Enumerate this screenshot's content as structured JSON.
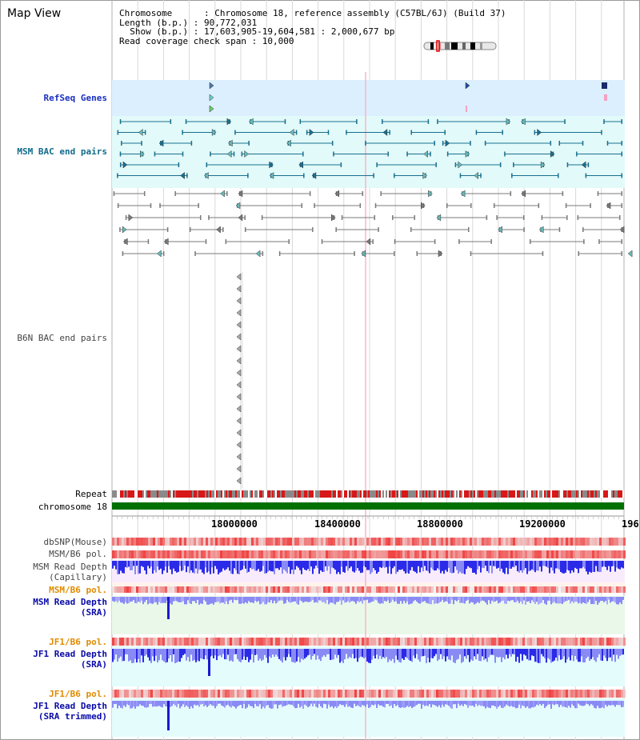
{
  "title": "Map View",
  "header": {
    "line1": "Chromosome      : Chromosome 18, reference assembly (C57BL/6J) (Build 37)",
    "line2": "Length (b.p.) : 90,772,031",
    "line3": "  Show (b.p.) : 17,603,905-19,604,581 : 2,000,677 bp",
    "line4": "Read coverage check span : 10,000"
  },
  "tracks": {
    "refseq": "RefSeq Genes",
    "msm_bac": "MSM BAC end pairs",
    "b6n_bac": "B6N BAC end pairs",
    "repeat": "Repeat",
    "chromosome": "chromosome 18",
    "dbsnp": "dbSNP(Mouse)",
    "msm_b6_pol": "MSM/B6 pol.",
    "msm_depth_cap": "MSM Read Depth\n(Capillary)",
    "msm_b6_pol2": "MSM/B6 pol.",
    "msm_depth_sra": "MSM Read Depth\n(SRA)",
    "jf1_b6_pol": "JF1/B6 pol.",
    "jf1_depth_sra": "JF1 Read Depth\n(SRA)",
    "jf1_b6_pol2": "JF1/B6 pol.",
    "jf1_depth_trim": "JF1 Read Depth\n(SRA trimmed)"
  },
  "axis_ticks": [
    "18000000",
    "18400000",
    "18800000",
    "19200000",
    "196"
  ],
  "colors": {
    "refseq_bg": "#dcefff",
    "msm_bac_bg": "#e2fafa",
    "b6n_bg": "#f3f3f3",
    "chromosome_bar": "#007000",
    "repeat_red": "#d81818",
    "repeat_gray": "#8a8a8a",
    "depth_blue": "#2a2ae8",
    "depth_light": "#8a8af5",
    "pol_red": "#f05050",
    "lavender_bg": "#f8ecfc",
    "mint_bg": "#eaf8ea",
    "cyan_bg": "#e4fcfc",
    "teal": "#1a7090"
  }
}
